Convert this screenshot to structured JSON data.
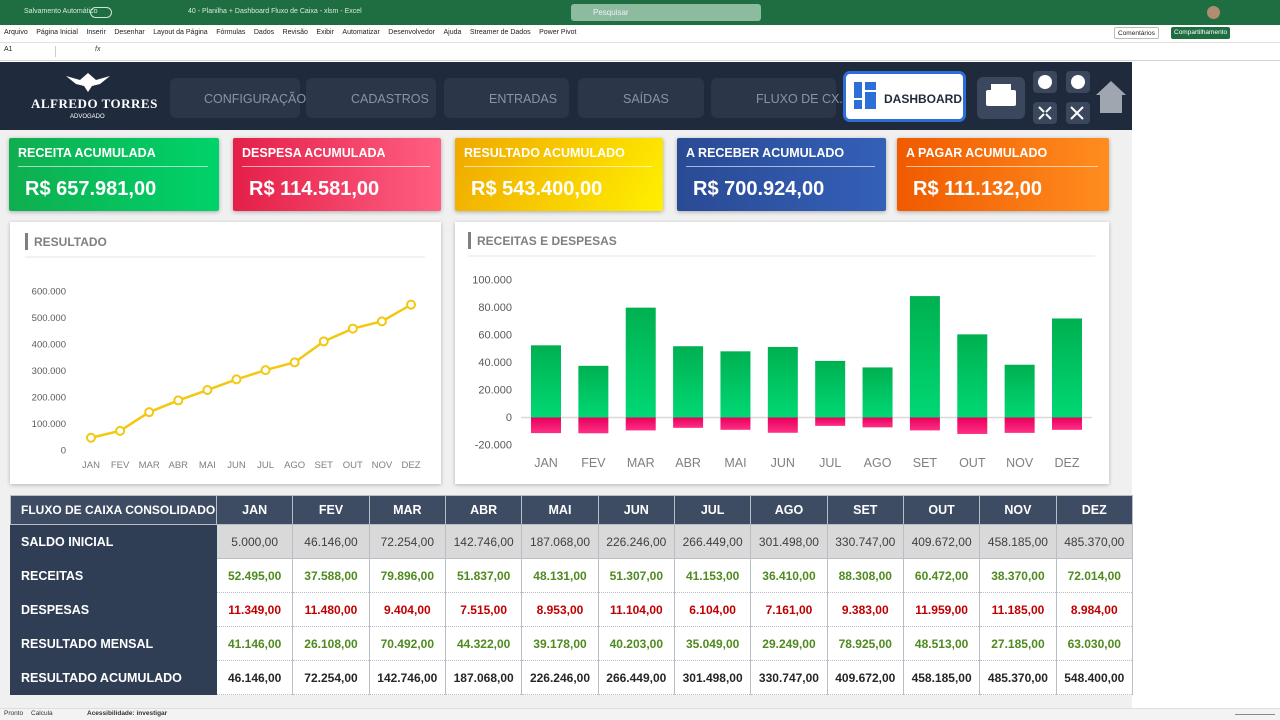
{
  "window": {
    "autosave": "Salvamento Automático",
    "title": "40 - Planilha + Dashboard Fluxo de Caixa - xlsm  -  Excel",
    "search": "Pesquisar"
  },
  "ribbon": {
    "tabs": [
      "Arquivo",
      "Página Inicial",
      "Inserir",
      "Desenhar",
      "Layout da Página",
      "Fórmulas",
      "Dados",
      "Revisão",
      "Exibir",
      "Automatizar",
      "Desenvolvedor",
      "Ajuda",
      "Streamer de Dados",
      "Power Pivot"
    ],
    "comments": "Comentários",
    "share": "Compartilhamento"
  },
  "formula_bar": {
    "name_box": "A1",
    "fx": "fx"
  },
  "header": {
    "brand": "ALFREDO TORRES",
    "subtitle": "ADVOGADO",
    "nav": [
      "CONFIGURAÇÃO",
      "CADASTROS",
      "ENTRADAS",
      "SAÍDAS",
      "FLUXO DE CX.",
      "DASHBOARD"
    ]
  },
  "kpis": [
    {
      "label": "RECEITA ACUMULADA",
      "value": "R$ 657.981,00"
    },
    {
      "label": "DESPESA ACUMULADA",
      "value": "R$ 114.581,00"
    },
    {
      "label": "RESULTADO ACUMULADO",
      "value": "R$ 543.400,00"
    },
    {
      "label": "A RECEBER ACUMULADO",
      "value": "R$ 700.924,00"
    },
    {
      "label": "A PAGAR ACUMULADO",
      "value": "R$ 111.132,00"
    }
  ],
  "chart_data": [
    {
      "type": "line",
      "title": "RESULTADO",
      "categories": [
        "JAN",
        "FEV",
        "MAR",
        "ABR",
        "MAI",
        "JUN",
        "JUL",
        "AGO",
        "SET",
        "OUT",
        "NOV",
        "DEZ"
      ],
      "values": [
        46146,
        72254,
        142746,
        187068,
        226246,
        266449,
        301498,
        330747,
        409672,
        458185,
        485370,
        548400
      ],
      "color": "#f2c811",
      "ylim": [
        0,
        600000
      ],
      "yticks": [
        0,
        {
          "value": 100000,
          "label": "100.000"
        },
        {
          "value": 200000,
          "label": "200.000"
        },
        {
          "value": 300000,
          "label": "300.000"
        },
        {
          "value": 400000,
          "label": "400.000"
        },
        {
          "value": 500000,
          "label": "500.000"
        },
        {
          "value": 600000,
          "label": "600.000"
        }
      ]
    },
    {
      "type": "bar",
      "title": "RECEITAS E DESPESAS",
      "categories": [
        "JAN",
        "FEV",
        "MAR",
        "ABR",
        "MAI",
        "JUN",
        "JUL",
        "AGO",
        "SET",
        "OUT",
        "NOV",
        "DEZ"
      ],
      "series": [
        {
          "color": "#00b050",
          "values": [
            52495,
            37588,
            79896,
            51837,
            48131,
            51307,
            41153,
            36410,
            88308,
            60472,
            38370,
            72014
          ]
        },
        {
          "color": "#e6005c",
          "values": [
            -11349,
            -11480,
            -9404,
            -7515,
            -8953,
            -11104,
            -6104,
            -7161,
            -9383,
            -11959,
            -11185,
            -8984
          ]
        }
      ],
      "ylim": [
        -20000,
        100000
      ],
      "yticks": [
        {
          "value": -20000,
          "label": "-20.000"
        },
        0,
        {
          "value": 20000,
          "label": "20.000"
        },
        {
          "value": 40000,
          "label": "40.000"
        },
        {
          "value": 60000,
          "label": "60.000"
        },
        {
          "value": 80000,
          "label": "80.000"
        },
        {
          "value": 100000,
          "label": "100.000"
        }
      ]
    }
  ],
  "table": {
    "header": [
      "FLUXO DE CAIXA CONSOLIDADO",
      "JAN",
      "FEV",
      "MAR",
      "ABR",
      "MAI",
      "JUN",
      "JUL",
      "AGO",
      "SET",
      "OUT",
      "NOV",
      "DEZ"
    ],
    "rows": [
      [
        "SALDO INICIAL",
        "5.000,00",
        "46.146,00",
        "72.254,00",
        "142.746,00",
        "187.068,00",
        "226.246,00",
        "266.449,00",
        "301.498,00",
        "330.747,00",
        "409.672,00",
        "458.185,00",
        "485.370,00"
      ],
      [
        "RECEITAS",
        "52.495,00",
        "37.588,00",
        "79.896,00",
        "51.837,00",
        "48.131,00",
        "51.307,00",
        "41.153,00",
        "36.410,00",
        "88.308,00",
        "60.472,00",
        "38.370,00",
        "72.014,00"
      ],
      [
        "DESPESAS",
        "11.349,00",
        "11.480,00",
        "9.404,00",
        "7.515,00",
        "8.953,00",
        "11.104,00",
        "6.104,00",
        "7.161,00",
        "9.383,00",
        "11.959,00",
        "11.185,00",
        "8.984,00"
      ],
      [
        "RESULTADO MENSAL",
        "41.146,00",
        "26.108,00",
        "70.492,00",
        "44.322,00",
        "39.178,00",
        "40.203,00",
        "35.049,00",
        "29.249,00",
        "78.925,00",
        "48.513,00",
        "27.185,00",
        "63.030,00"
      ],
      [
        "RESULTADO ACUMULADO",
        "46.146,00",
        "72.254,00",
        "142.746,00",
        "187.068,00",
        "226.246,00",
        "266.449,00",
        "301.498,00",
        "330.747,00",
        "409.672,00",
        "458.185,00",
        "485.370,00",
        "548.400,00"
      ]
    ]
  },
  "status_bar": {
    "items": [
      "Pronto",
      "Calcula",
      "Acessibilidade: investigar"
    ]
  }
}
